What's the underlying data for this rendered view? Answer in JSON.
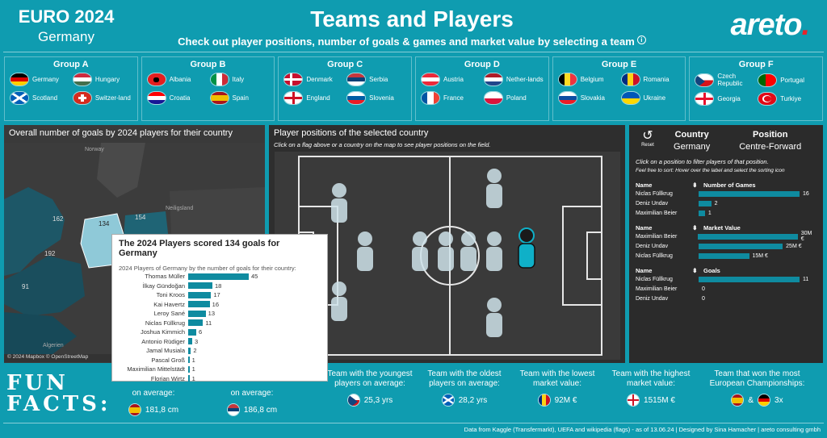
{
  "header": {
    "euro_title": "EURO 2024",
    "euro_country": "Germany",
    "title": "Teams and Players",
    "subtitle": "Check out player positions, number of goals & games and market value by selecting a team",
    "info_glyph": "i",
    "logo_text": "areto",
    "logo_dot": "."
  },
  "groups": [
    {
      "title": "Group A",
      "teams": [
        {
          "name": "Germany",
          "flag": "germany"
        },
        {
          "name": "Hungary",
          "flag": "hungary"
        },
        {
          "name": "Scotland",
          "flag": "scotland"
        },
        {
          "name": "Switzer-land",
          "flag": "switzerland"
        }
      ]
    },
    {
      "title": "Group B",
      "teams": [
        {
          "name": "Albania",
          "flag": "albania"
        },
        {
          "name": "Italy",
          "flag": "italy"
        },
        {
          "name": "Croatia",
          "flag": "croatia"
        },
        {
          "name": "Spain",
          "flag": "spain"
        }
      ]
    },
    {
      "title": "Group C",
      "teams": [
        {
          "name": "Denmark",
          "flag": "denmark"
        },
        {
          "name": "Serbia",
          "flag": "serbia"
        },
        {
          "name": "England",
          "flag": "england"
        },
        {
          "name": "Slovenia",
          "flag": "slovenia"
        }
      ]
    },
    {
      "title": "Group D",
      "teams": [
        {
          "name": "Austria",
          "flag": "austria"
        },
        {
          "name": "Nether-lands",
          "flag": "netherlands"
        },
        {
          "name": "France",
          "flag": "france"
        },
        {
          "name": "Poland",
          "flag": "poland"
        }
      ]
    },
    {
      "title": "Group E",
      "teams": [
        {
          "name": "Belgium",
          "flag": "belgium"
        },
        {
          "name": "Romania",
          "flag": "romania"
        },
        {
          "name": "Slovakia",
          "flag": "slovakia"
        },
        {
          "name": "Ukraine",
          "flag": "ukraine"
        }
      ]
    },
    {
      "title": "Group F",
      "teams": [
        {
          "name": "Czech Republic",
          "flag": "czech"
        },
        {
          "name": "Portugal",
          "flag": "portugal"
        },
        {
          "name": "Georgia",
          "flag": "georgia"
        },
        {
          "name": "Turkiye",
          "flag": "turkiye"
        }
      ]
    }
  ],
  "map_panel": {
    "title": "Overall number of goals by 2024 players for their country",
    "labels": {
      "norway": "Norway",
      "netherlands": "Neiligsland",
      "algeria": "Algerien",
      "germany_goals": "134",
      "poland_goals": "154",
      "left1": "162",
      "left2": "192",
      "left3": "91",
      "left4": "55"
    },
    "attribution": "© 2024 Mapbox © OpenStreetMap"
  },
  "popup": {
    "title": "The 2024 Players scored 134 goals for Germany",
    "subtitle": "2024 Players of Germany by the number of goals for their country:",
    "rows": [
      {
        "name": "Thomas Müller",
        "goals": 45
      },
      {
        "name": "İlkay Gündoğan",
        "goals": 18
      },
      {
        "name": "Toni Kroos",
        "goals": 17
      },
      {
        "name": "Kai Havertz",
        "goals": 16
      },
      {
        "name": "Leroy Sané",
        "goals": 13
      },
      {
        "name": "Niclas Füllkrug",
        "goals": 11
      },
      {
        "name": "Joshua Kimmich",
        "goals": 6
      },
      {
        "name": "Antonio Rüdiger",
        "goals": 3
      },
      {
        "name": "Jamal Musiala",
        "goals": 2
      },
      {
        "name": "Pascal Groß",
        "goals": 1
      },
      {
        "name": "Maximilian Mittelstädt",
        "goals": 1
      },
      {
        "name": "Florian Wirtz",
        "goals": 1
      }
    ]
  },
  "field_panel": {
    "title": "Player positions of the selected country",
    "subtitle": "Click on a flag above or a country on the map to see player positions on the field."
  },
  "right_panel": {
    "reset_label": "Reset",
    "country_label": "Country",
    "country_value": "Germany",
    "position_label": "Position",
    "position_value": "Centre-Forward",
    "hint1": "Click on a position to filter players of that position.",
    "hint2": "Feel free to sort: Hover over the label and select the sorting icon",
    "blocks": [
      {
        "col1": "Name",
        "col2": "Number of Games",
        "max": 16,
        "rows": [
          {
            "name": "Niclas Füllkrug",
            "value": 16,
            "label": "16"
          },
          {
            "name": "Deniz Undav",
            "value": 2,
            "label": "2"
          },
          {
            "name": "Maximilian Beier",
            "value": 1,
            "label": "1"
          }
        ]
      },
      {
        "col1": "Name",
        "col2": "Market Value",
        "max": 30,
        "rows": [
          {
            "name": "Maximilian Beier",
            "value": 30,
            "label": "30M €"
          },
          {
            "name": "Deniz Undav",
            "value": 25,
            "label": "25M €"
          },
          {
            "name": "Niclas Füllkrug",
            "value": 15,
            "label": "15M €"
          }
        ]
      },
      {
        "col1": "Name",
        "col2": "Goals",
        "max": 11,
        "rows": [
          {
            "name": "Niclas Füllkrug",
            "value": 11,
            "label": "11"
          },
          {
            "name": "Maximilian Beier",
            "value": 0,
            "label": "0"
          },
          {
            "name": "Deniz Undav",
            "value": 0,
            "label": "0"
          }
        ]
      }
    ]
  },
  "fun_facts": {
    "label_line1": "FUN",
    "label_line2": "FACTS:",
    "items": [
      {
        "label": "on average:",
        "value": "181,8 cm",
        "flag": "spain"
      },
      {
        "label": "on average:",
        "value": "186,8 cm",
        "flag": "serbia"
      },
      {
        "label": "Team with the youngest players on average:",
        "value": "25,3 yrs",
        "flag": "czech"
      },
      {
        "label": "Team with the oldest players on average:",
        "value": "28,2 yrs",
        "flag": "scotland"
      },
      {
        "label": "Team with the lowest market value:",
        "value": "92M €",
        "flag": "romania"
      },
      {
        "label": "Team with the highest market value:",
        "value": "1515M €",
        "flag": "england"
      },
      {
        "label": "Team that won the most European Championships:",
        "value": "3x",
        "flag": "spain",
        "flag2": "germany",
        "amp": "&"
      }
    ]
  },
  "footer": "Data from Kaggle (Transfermarkt), UEFA and wikipedia (flags) - as of 13.06.24 | Designed by Sina Hamacher | areto consulting gmbh",
  "colors": {
    "background": "#0f9cb0",
    "bar": "#0f8ba0",
    "panel": "#2b2b2b",
    "logo_dot": "#e8232a"
  }
}
